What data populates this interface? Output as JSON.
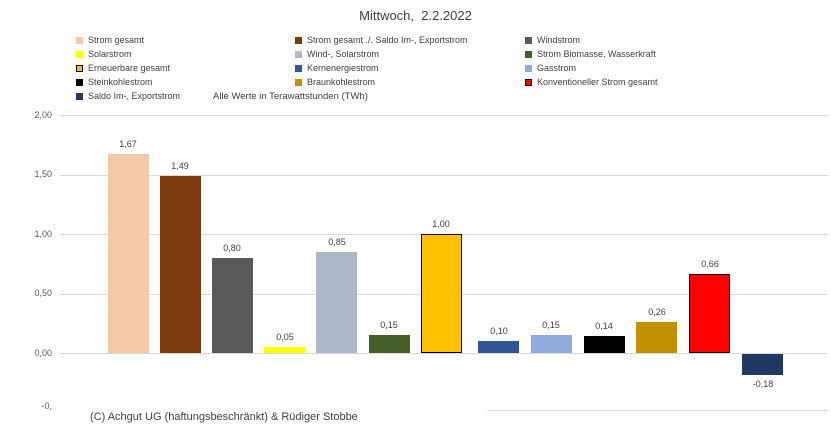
{
  "title": "Mittwoch,  2.2.2022",
  "unit_note": "Alle Werte in Terawattstunden (TWh)",
  "footer": "(C) Achgut UG (haftungsbeschränkt) & Rüdiger Stobbe",
  "legend": {
    "columns": [
      [
        {
          "label": "Strom gesamt",
          "color": "#F5C8A8"
        },
        {
          "label": "Solarstrom",
          "color": "#FFFF00"
        },
        {
          "label": "Erneuerbare gesamt",
          "color": "#FFC000",
          "border": "#000000"
        },
        {
          "label": "Steinkohlestrom",
          "color": "#000000"
        },
        {
          "label": "Saldo Im-, Exportstrom",
          "color": "#1F3864"
        }
      ],
      [
        {
          "label": "Strom gesamt ./. Saldo Im-, Exportstrom",
          "color": "#7E3B10"
        },
        {
          "label": "Wind-, Solarstrom",
          "color": "#ADB9CA"
        },
        {
          "label": "Kernenergiestrom",
          "color": "#2F5597"
        },
        {
          "label": "Braunkohlestrom",
          "color": "#BF9000"
        }
      ],
      [
        {
          "label": "Windstrom",
          "color": "#595959"
        },
        {
          "label": "Strom Biomasse, Wasserkraft",
          "color": "#465E28"
        },
        {
          "label": "Gasstrom",
          "color": "#8FAADC"
        },
        {
          "label": "Konventioneller Strom gesamt",
          "color": "#FF0000",
          "border": "#000000"
        }
      ]
    ]
  },
  "chart_data": {
    "type": "bar",
    "title": "Mittwoch, 2.2.2022",
    "xlabel": "",
    "ylabel": "",
    "unit": "TWh",
    "ylim": [
      -0.5,
      2.0
    ],
    "ytick_step": 0.5,
    "grid": true,
    "legend_position": "top",
    "yticks": [
      {
        "label": "2,00",
        "value": 2.0
      },
      {
        "label": "1,50",
        "value": 1.5
      },
      {
        "label": "1,00",
        "value": 1.0
      },
      {
        "label": "0,50",
        "value": 0.5
      },
      {
        "label": "0,00",
        "value": 0.0
      }
    ],
    "clipped_ytick": {
      "label": "-0,",
      "value": -0.5
    },
    "bars": [
      {
        "name": "strom-gesamt",
        "category": "Strom gesamt",
        "value": 1.67,
        "label": "1,67",
        "color": "#F5C8A8"
      },
      {
        "name": "strom-gesamt-saldo",
        "category": "Strom gesamt ./. Saldo Im-, Exportstrom",
        "value": 1.49,
        "label": "1,49",
        "color": "#7E3B10"
      },
      {
        "name": "windstrom",
        "category": "Windstrom",
        "value": 0.8,
        "label": "0,80",
        "color": "#595959"
      },
      {
        "name": "solarstrom",
        "category": "Solarstrom",
        "value": 0.05,
        "label": "0,05",
        "color": "#FFFF00"
      },
      {
        "name": "wind-solarstrom",
        "category": "Wind-, Solarstrom",
        "value": 0.85,
        "label": "0,85",
        "color": "#ADB9CA"
      },
      {
        "name": "strom-biomasse-wasserkraft",
        "category": "Strom Biomasse, Wasserkraft",
        "value": 0.15,
        "label": "0,15",
        "color": "#465E28"
      },
      {
        "name": "erneuerbare-gesamt",
        "category": "Erneuerbare gesamt",
        "value": 1.0,
        "label": "1,00",
        "color": "#FFC000",
        "border": "#000000"
      },
      {
        "name": "kernenergiestrom",
        "category": "Kernenergiestrom",
        "value": 0.1,
        "label": "0,10",
        "color": "#2F5597"
      },
      {
        "name": "gasstrom",
        "category": "Gasstrom",
        "value": 0.15,
        "label": "0,15",
        "color": "#8FAADC"
      },
      {
        "name": "steinkohlestrom",
        "category": "Steinkohlestrom",
        "value": 0.14,
        "label": "0,14",
        "color": "#000000"
      },
      {
        "name": "braunkohlestrom",
        "category": "Braunkohlestrom",
        "value": 0.26,
        "label": "0,26",
        "color": "#BF9000"
      },
      {
        "name": "konventioneller-strom-gesamt",
        "category": "Konventioneller Strom gesamt",
        "value": 0.66,
        "label": "0,66",
        "color": "#FF0000",
        "border": "#000000"
      },
      {
        "name": "saldo-im-exportstrom",
        "category": "Saldo Im-, Exportstrom",
        "value": -0.18,
        "label": "-0,18",
        "color": "#1F3864"
      }
    ]
  }
}
